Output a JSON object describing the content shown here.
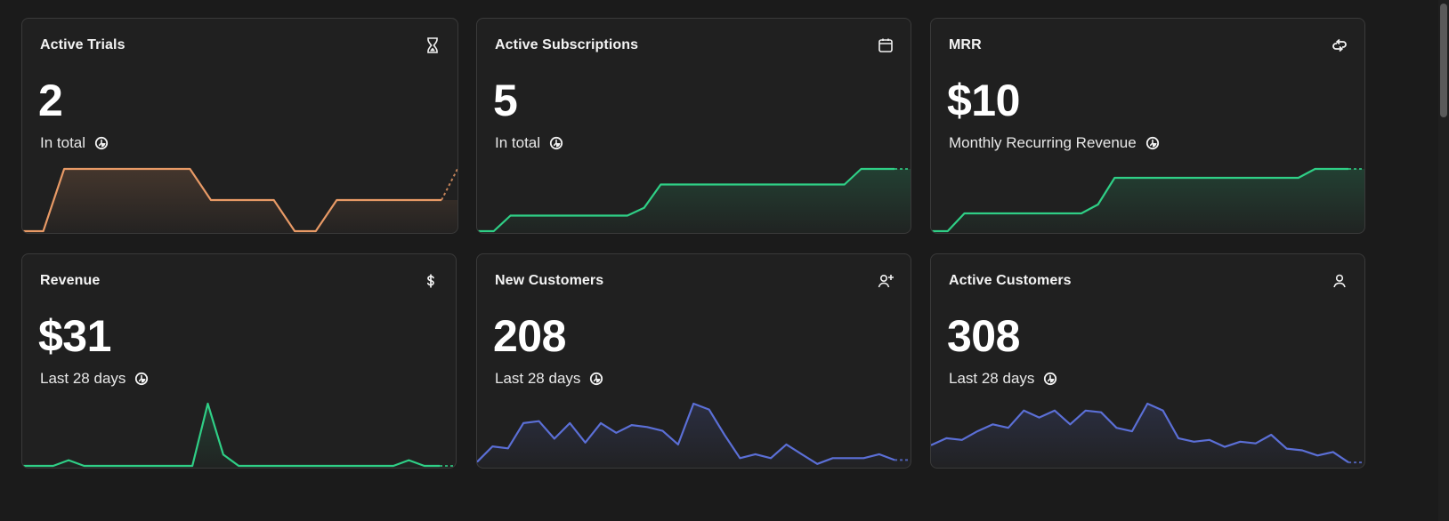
{
  "colors": {
    "orange": "#e89a66",
    "green": "#2fcf86",
    "blue": "#5b6fd6"
  },
  "cards": [
    {
      "title": "Active Trials",
      "value": "2",
      "subtitle": "In total",
      "icon": "hourglass-icon",
      "color": "#e89a66",
      "series": [
        0,
        0,
        2,
        2,
        2,
        2,
        2,
        2,
        2,
        1,
        1,
        1,
        1,
        0,
        0,
        1,
        1,
        1,
        1,
        1,
        1
      ]
    },
    {
      "title": "Active Subscriptions",
      "value": "5",
      "subtitle": "In total",
      "icon": "calendar-icon",
      "color": "#2fcf86",
      "series": [
        0,
        0,
        1,
        1,
        1,
        1,
        1,
        1,
        1,
        1,
        1.5,
        3,
        3,
        3,
        3,
        3,
        3,
        3,
        3,
        3,
        3,
        3,
        3,
        4,
        4,
        4
      ]
    },
    {
      "title": "MRR",
      "value": "$10",
      "subtitle": "Monthly Recurring Revenue",
      "icon": "recurring-icon",
      "color": "#2fcf86",
      "series": [
        0,
        0,
        1,
        1,
        1,
        1,
        1,
        1,
        1,
        1,
        1.5,
        3,
        3,
        3,
        3,
        3,
        3,
        3,
        3,
        3,
        3,
        3,
        3,
        3.5,
        3.5,
        3.5
      ]
    },
    {
      "title": "Revenue",
      "value": "$31",
      "subtitle": "Last 28 days",
      "icon": "dollar-icon",
      "color": "#2fcf86",
      "series": [
        0,
        0,
        0,
        1,
        0,
        0,
        0,
        0,
        0,
        0,
        0,
        0,
        11,
        2,
        0,
        0,
        0,
        0,
        0,
        0,
        0,
        0,
        0,
        0,
        0,
        1,
        0,
        0
      ]
    },
    {
      "title": "New Customers",
      "value": "208",
      "subtitle": "Last 28 days",
      "icon": "user-plus-icon",
      "color": "#5b6fd6",
      "series": [
        1,
        5,
        4.5,
        11,
        11.5,
        7,
        11,
        6,
        11,
        8.5,
        10.5,
        10,
        9,
        5.5,
        16,
        14.5,
        8,
        2,
        3,
        2,
        5.5,
        3,
        0.5,
        2,
        2,
        2,
        3,
        1.5
      ]
    },
    {
      "title": "Active Customers",
      "value": "308",
      "subtitle": "Last 28 days",
      "icon": "user-icon",
      "color": "#5b6fd6",
      "series": [
        6,
        8,
        7.5,
        10,
        12,
        11,
        16,
        14,
        16,
        12,
        16,
        15.5,
        11,
        10,
        18,
        16,
        8,
        7,
        7.5,
        5.5,
        7,
        6.5,
        9,
        5,
        4.5,
        3,
        4,
        1
      ]
    }
  ]
}
